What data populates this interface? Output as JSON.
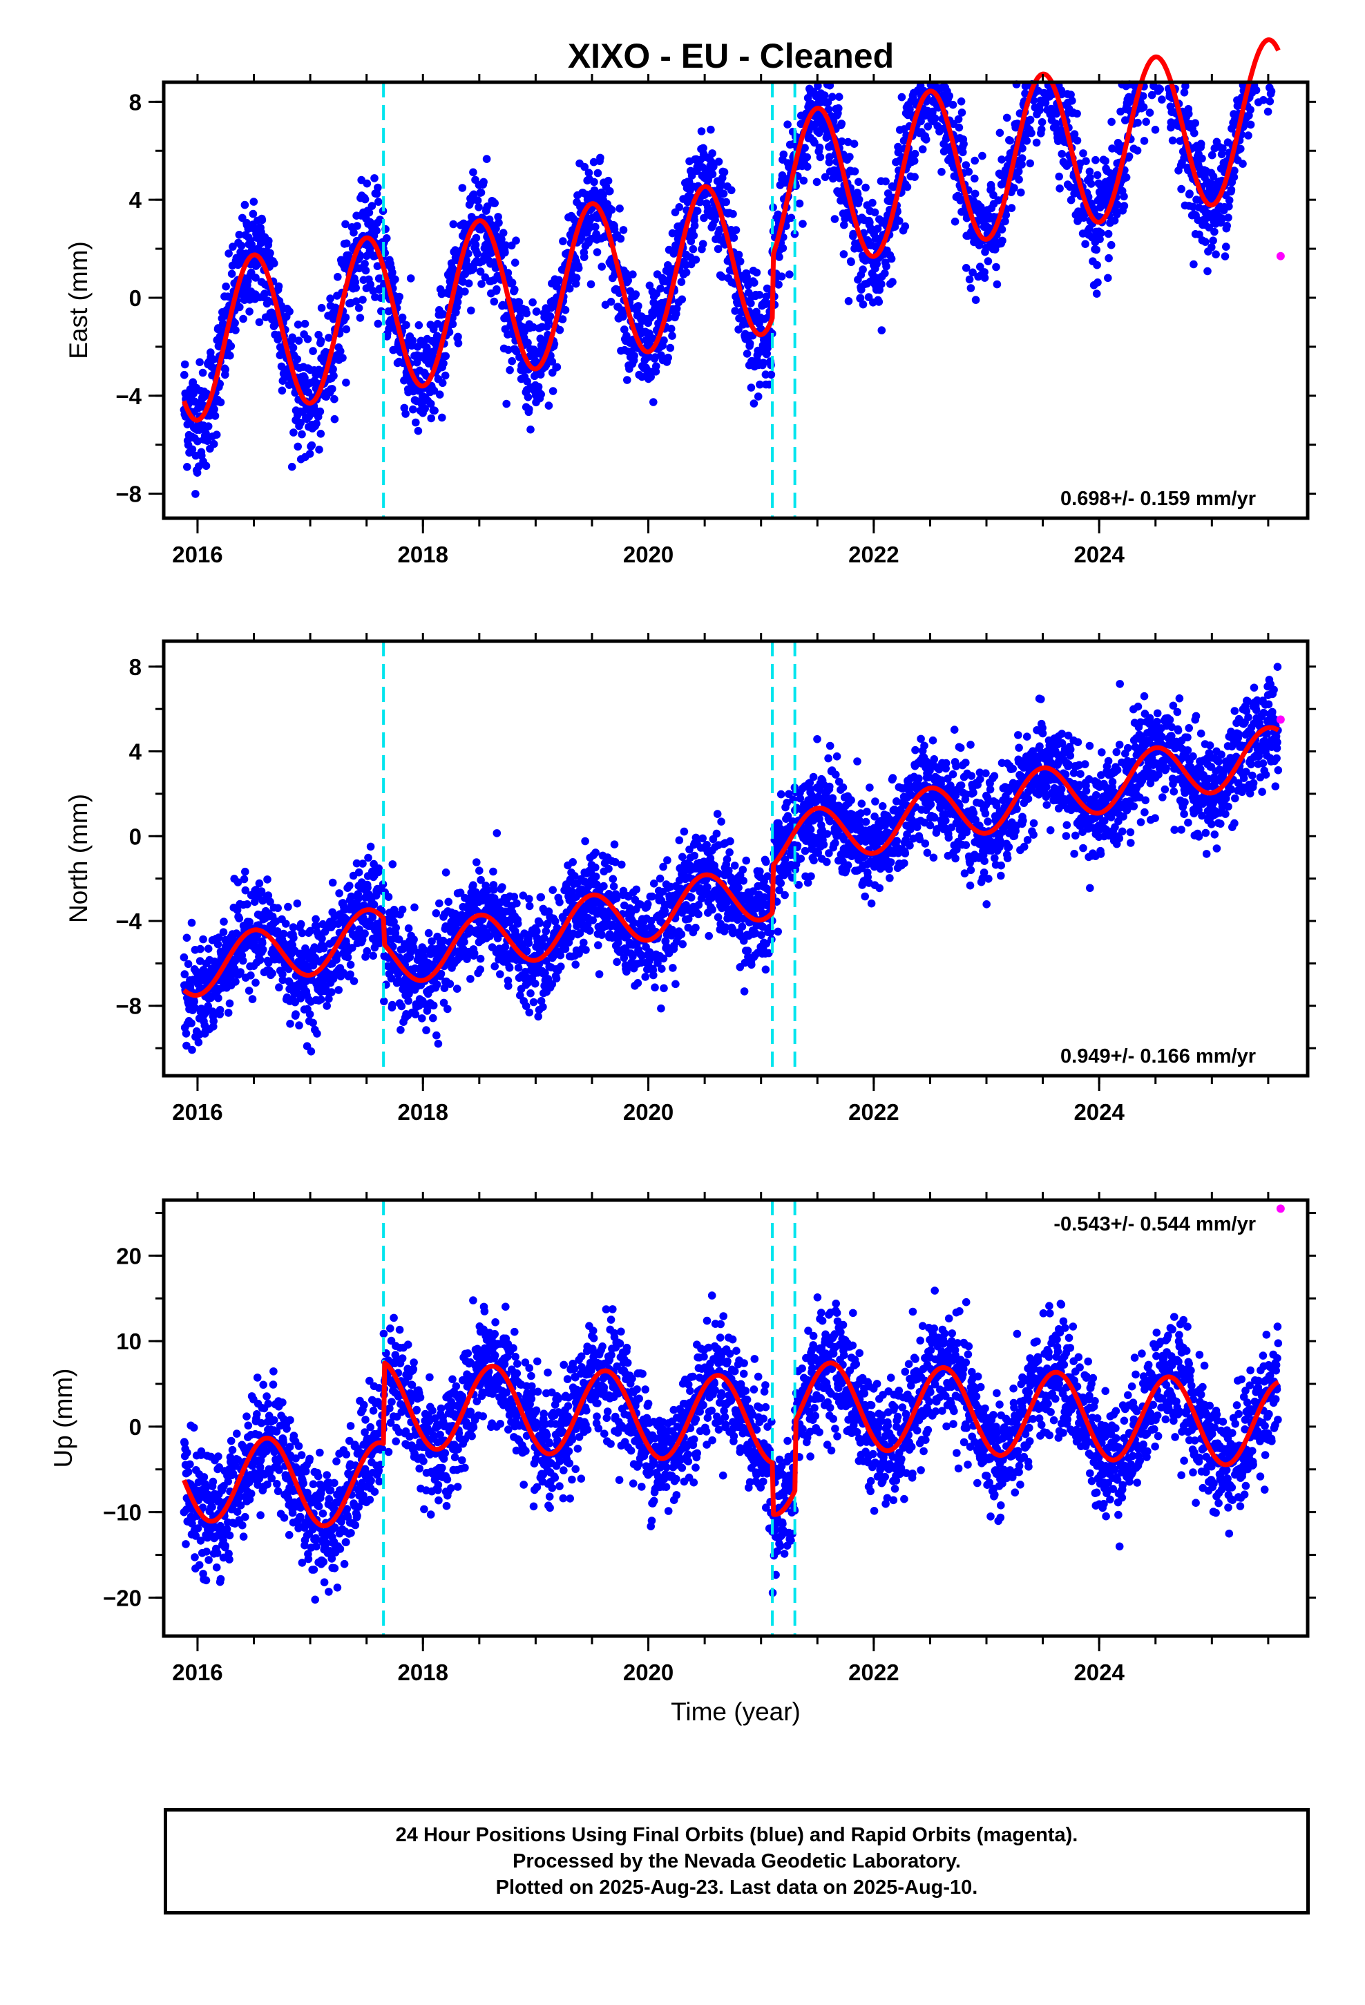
{
  "title": "XIXO  - EU - Cleaned",
  "footer": {
    "line1": "24 Hour Positions Using Final Orbits (blue) and Rapid Orbits (magenta).",
    "line2": "Processed by the Nevada Geodetic Laboratory.",
    "line3": "Plotted on 2025-Aug-23. Last data on 2025-Aug-10."
  },
  "colors": {
    "final_orbits": "#0000ff",
    "rapid_orbits": "#ff00ff",
    "model_fit": "#ff0000",
    "equipment_change": "#00e5ee"
  },
  "chart_data": [
    {
      "type": "scatter",
      "panel": "east",
      "ylabel": "East (mm)",
      "xlabel": "",
      "xlim": [
        2015.7,
        2025.85
      ],
      "ylim": [
        -9,
        8.8
      ],
      "xticks": [
        2016,
        2018,
        2020,
        2022,
        2024
      ],
      "yticks": [
        -8,
        -4,
        0,
        4,
        8
      ],
      "rate_label": "0.698+/- 0.159 mm/yr",
      "vertical_lines": [
        2017.65,
        2021.1,
        2021.3
      ],
      "fit_model": {
        "intercept_2016": -1.8,
        "trend": 0.698,
        "annual_amp": 3.2,
        "annual_phase_peak": 0.5,
        "steps": [
          [
            2021.1,
            2.5
          ]
        ]
      },
      "scatter": 1.15,
      "series": [
        {
          "name": "Final Orbits",
          "x_start": 2015.88,
          "x_end": 2025.59
        },
        {
          "name": "Rapid Orbits",
          "x": [
            2025.61
          ],
          "y": [
            1.7
          ]
        }
      ]
    },
    {
      "type": "scatter",
      "panel": "north",
      "ylabel": "North (mm)",
      "xlabel": "",
      "xlim": [
        2015.7,
        2025.85
      ],
      "ylim": [
        -11.3,
        9.2
      ],
      "xticks": [
        2016,
        2018,
        2020,
        2022,
        2024
      ],
      "yticks": [
        -8,
        -4,
        0,
        4,
        8
      ],
      "rate_label": "0.949+/- 0.166 mm/yr",
      "vertical_lines": [
        2017.65,
        2021.1,
        2021.3
      ],
      "fit_model": {
        "intercept_2016": -6.2,
        "trend": 0.949,
        "annual_amp": 1.3,
        "annual_phase_peak": 0.5,
        "steps": [
          [
            2017.65,
            -1.2
          ],
          [
            2021.1,
            2.2
          ]
        ]
      },
      "scatter": 1.2,
      "series": [
        {
          "name": "Final Orbits",
          "x_start": 2015.88,
          "x_end": 2025.59
        },
        {
          "name": "Rapid Orbits",
          "x": [
            2025.61
          ],
          "y": [
            5.5
          ]
        }
      ]
    },
    {
      "type": "scatter",
      "panel": "up",
      "ylabel": "Up (mm)",
      "xlabel": "Time (year)",
      "xlim": [
        2015.7,
        2025.85
      ],
      "ylim": [
        -24.5,
        26.5
      ],
      "xticks": [
        2016,
        2018,
        2020,
        2022,
        2024
      ],
      "yticks": [
        -20,
        -10,
        0,
        10,
        20
      ],
      "rate_label": "-0.543+/- 0.544 mm/yr",
      "vertical_lines": [
        2017.65,
        2021.1,
        2021.3
      ],
      "fit_model": {
        "intercept_2016": -6,
        "trend": -0.543,
        "annual_amp": 5,
        "annual_phase_peak": 0.62,
        "steps": [
          [
            2017.65,
            9.5
          ],
          [
            2021.1,
            -6
          ],
          [
            2021.3,
            8
          ]
        ]
      },
      "scatter": 3.4,
      "series": [
        {
          "name": "Final Orbits",
          "x_start": 2015.88,
          "x_end": 2025.59
        },
        {
          "name": "Rapid Orbits",
          "x": [
            2025.61
          ],
          "y": [
            25.5
          ]
        }
      ]
    }
  ]
}
